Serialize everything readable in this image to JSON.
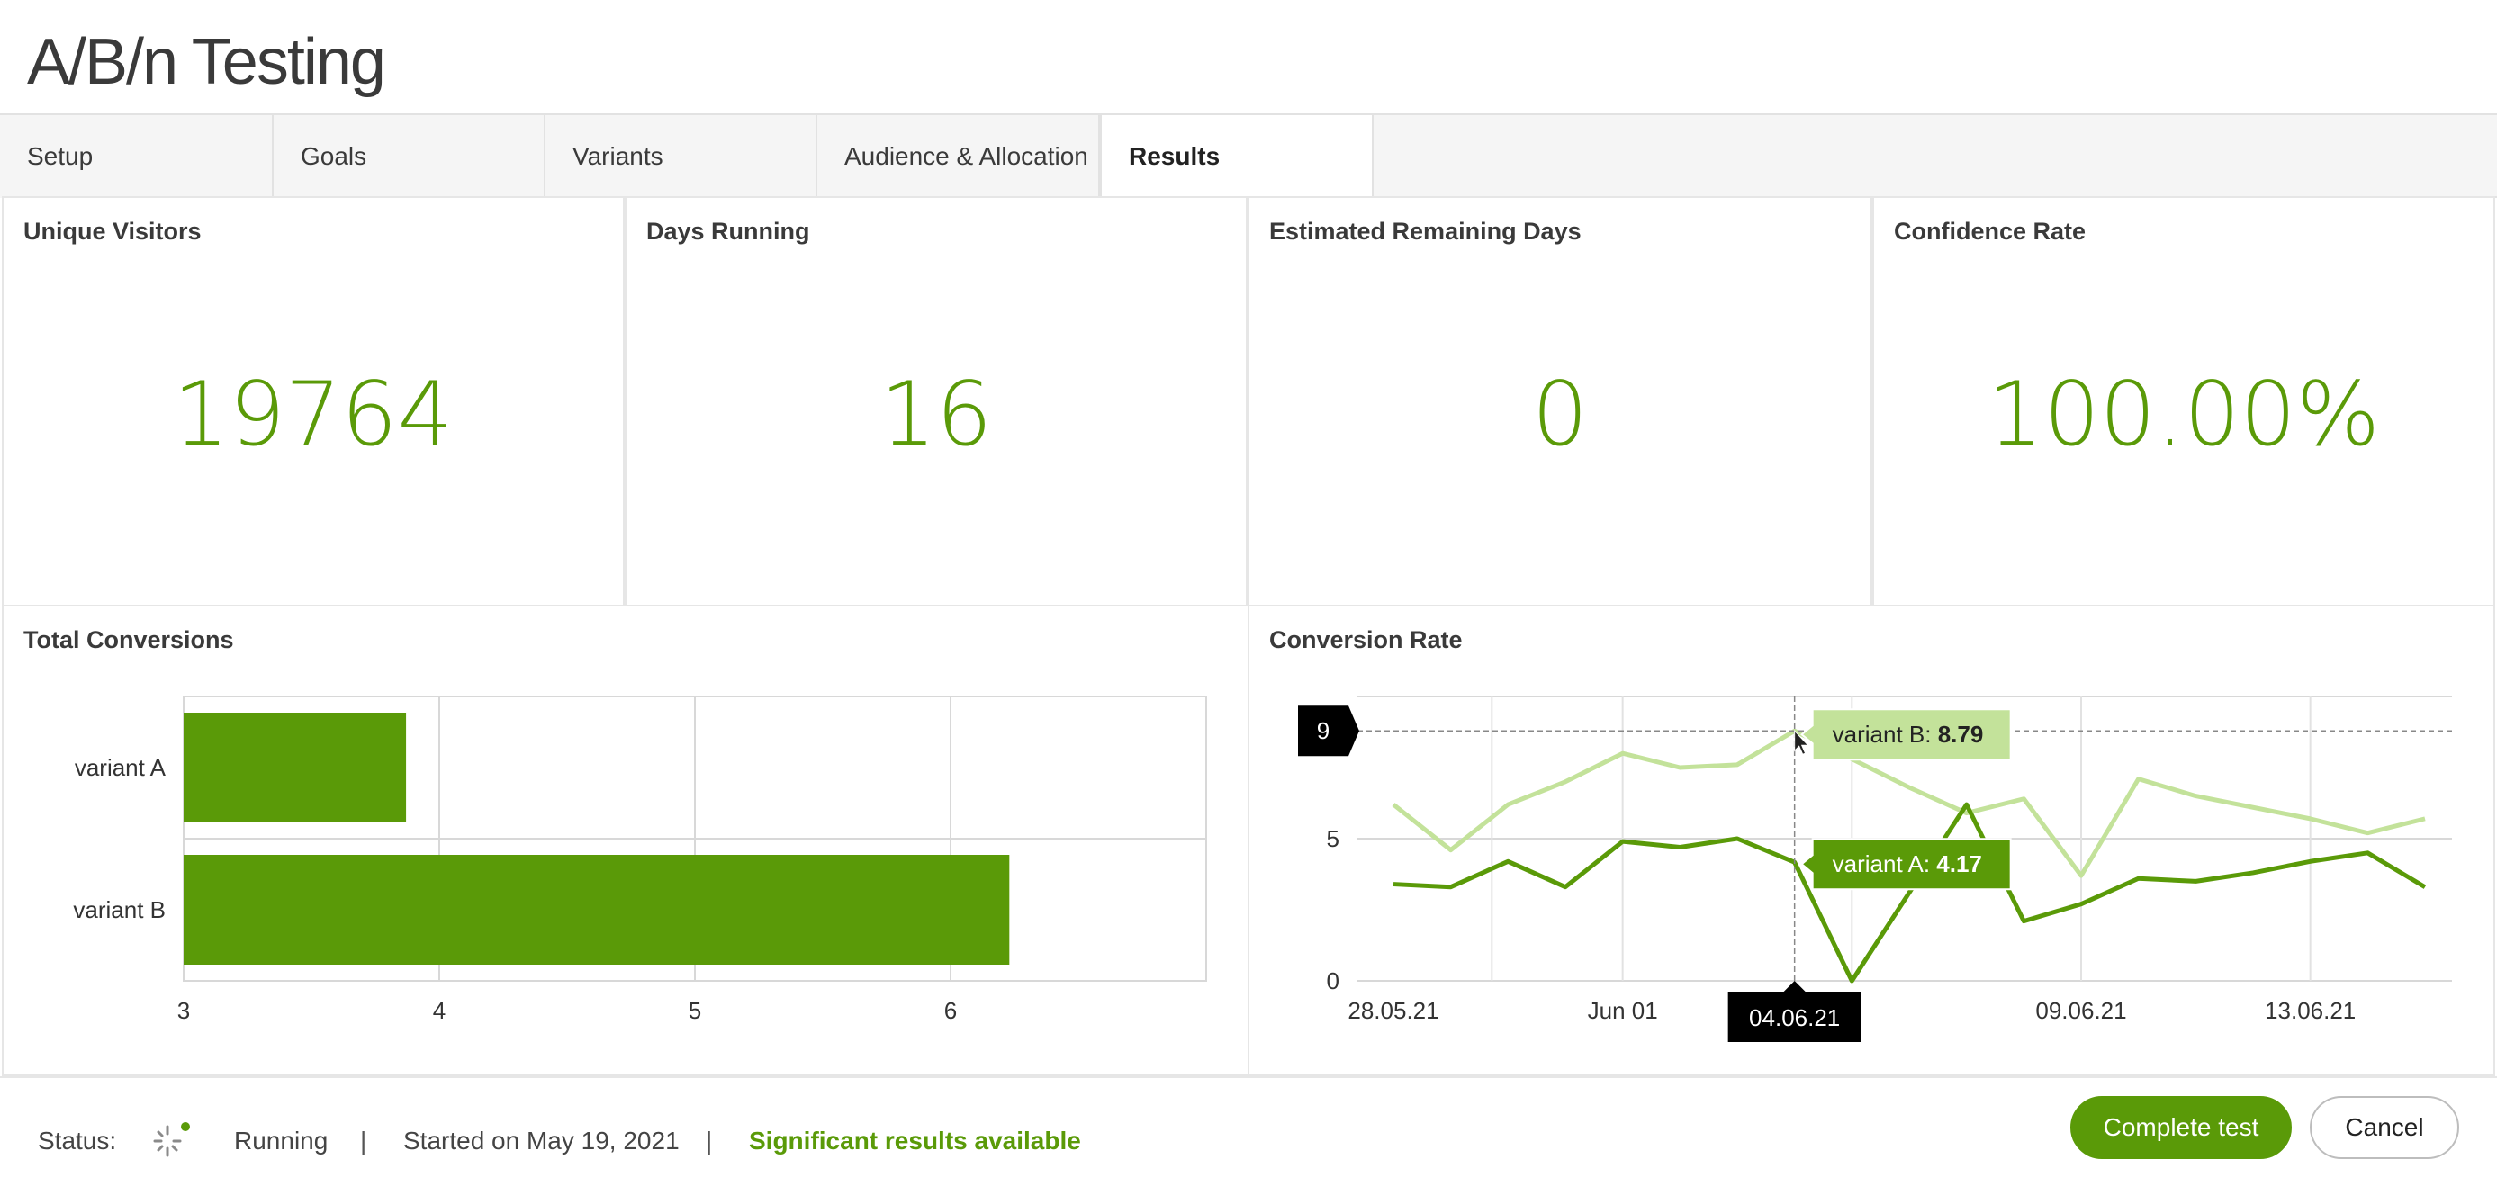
{
  "app": {
    "title": "A/B/n Testing"
  },
  "tabs": [
    {
      "label": "Setup"
    },
    {
      "label": "Goals"
    },
    {
      "label": "Variants"
    },
    {
      "label": "Audience & Allocation"
    },
    {
      "label": "Results"
    }
  ],
  "active_tab": "Results",
  "kpis": {
    "unique_visitors": {
      "title": "Unique Visitors",
      "value": "19764"
    },
    "days_running": {
      "title": "Days Running",
      "value": "16"
    },
    "remaining_days": {
      "title": "Estimated Remaining Days",
      "value": "0"
    },
    "confidence_rate": {
      "title": "Confidence Rate",
      "value": "100.00%"
    }
  },
  "total_conversions": {
    "title": "Total Conversions"
  },
  "conversion_rate": {
    "title": "Conversion Rate",
    "crosshair_y_label": "9",
    "crosshair_x_label": "04.06.21",
    "tooltip_b_name": "variant B",
    "tooltip_b_value": "8.79",
    "tooltip_a_name": "variant A",
    "tooltip_a_value": "4.17"
  },
  "chart_data": [
    {
      "type": "bar",
      "orientation": "horizontal",
      "categories": [
        "variant A",
        "variant B"
      ],
      "values": [
        3.87,
        6.23
      ],
      "xlim": [
        3,
        7
      ],
      "xticks": [
        "3",
        "4",
        "5",
        "6"
      ],
      "grid": true,
      "color": "#5a9a08"
    },
    {
      "type": "line",
      "x_ticks": [
        "28.05.21",
        "Jun 01",
        "09.06.21",
        "13.06.21"
      ],
      "y_ticks": [
        "0",
        "5"
      ],
      "ylim": [
        0,
        10
      ],
      "grid": true,
      "series": [
        {
          "name": "variant B",
          "color": "#c3e29a",
          "values": [
            6.2,
            4.6,
            6.2,
            7.0,
            8.0,
            7.5,
            7.6,
            8.79,
            7.8,
            6.8,
            5.9,
            6.4,
            3.7,
            7.1,
            6.5,
            6.1,
            5.7,
            5.2,
            5.7
          ]
        },
        {
          "name": "variant A",
          "color": "#5a9a08",
          "values": [
            3.4,
            3.3,
            4.2,
            3.3,
            4.9,
            4.7,
            5.0,
            4.17,
            0.0,
            3.1,
            6.2,
            2.1,
            2.7,
            3.6,
            3.5,
            3.8,
            4.2,
            4.5,
            3.3
          ]
        }
      ]
    }
  ],
  "footer": {
    "status_label": "Status:",
    "status_value": "Running",
    "separator": "|",
    "started": "Started on May 19, 2021",
    "significant": "Significant results available"
  },
  "actions": {
    "complete_label": "Complete test",
    "cancel_label": "Cancel"
  },
  "colors": {
    "accent": "#5a9a08",
    "accent_light": "#c3e29a"
  }
}
